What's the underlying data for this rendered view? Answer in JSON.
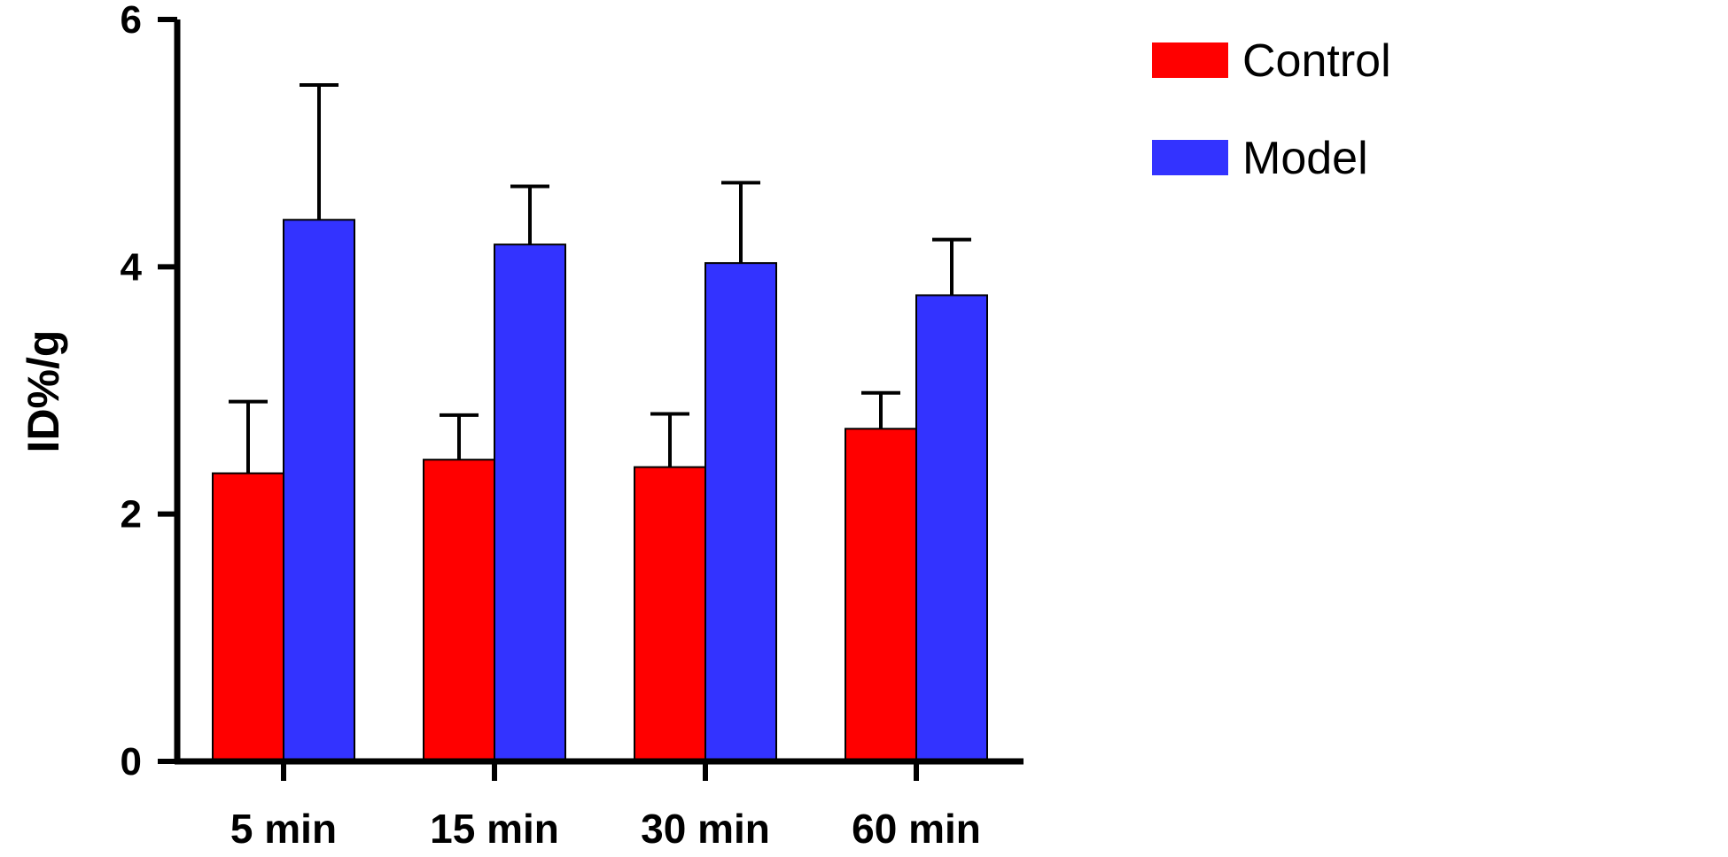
{
  "chart_data": {
    "type": "bar",
    "title": "",
    "xlabel": "",
    "ylabel": "ID%/g",
    "ylim": [
      0,
      6
    ],
    "yticks": [
      "0",
      "2",
      "4",
      "6"
    ],
    "categories": [
      "5 min",
      "15 min",
      "30 min",
      "60 min"
    ],
    "series": [
      {
        "name": "Control",
        "color": "#ff0000",
        "values": [
          2.33,
          2.44,
          2.38,
          2.69
        ],
        "errors": [
          0.58,
          0.36,
          0.43,
          0.29
        ]
      },
      {
        "name": "Model",
        "color": "#3333ff",
        "values": [
          4.38,
          4.18,
          4.03,
          3.77
        ],
        "errors": [
          1.09,
          0.47,
          0.65,
          0.45
        ]
      }
    ],
    "legend": "top-right",
    "grid": false
  }
}
